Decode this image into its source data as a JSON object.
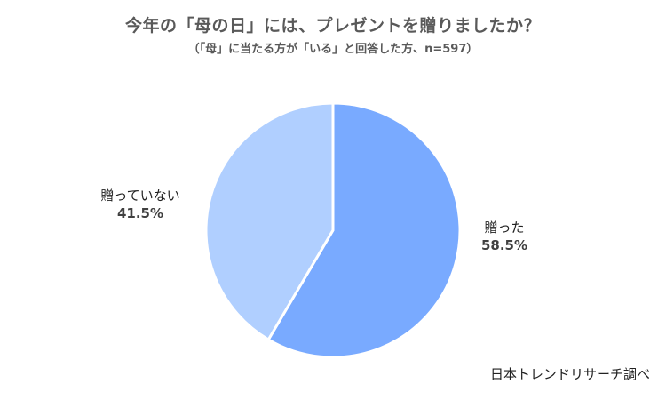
{
  "chart_data": {
    "type": "pie",
    "title": "今年の「母の日」には、プレゼントを贈りましたか？",
    "subtitle": "（「母」に当たる方が「いる」と回答した方、n=597）",
    "categories": [
      "贈った",
      "贈っていない"
    ],
    "values": [
      58.5,
      41.5
    ],
    "value_labels": [
      "58.5%",
      "41.5%"
    ],
    "colors": [
      "#79AAFF",
      "#B0CFFF"
    ],
    "legend": "none",
    "source": "日本トレンドリサーチ調べ"
  }
}
